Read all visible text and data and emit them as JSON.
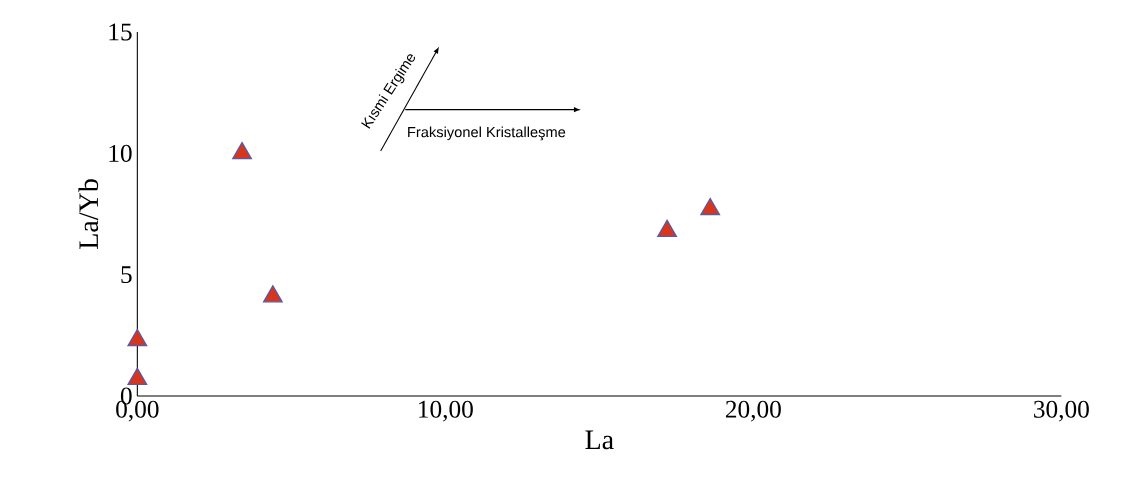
{
  "chart_data": {
    "type": "scatter",
    "xlabel": "La",
    "ylabel": "La/Yb",
    "x": [
      0,
      0,
      3.4,
      4.4,
      17.2,
      18.6
    ],
    "values": [
      0.7,
      2.3,
      10.0,
      4.1,
      6.8,
      7.7
    ],
    "color": "#d7351c",
    "marker": "triangle",
    "xlim": [
      0,
      30
    ],
    "ylim": [
      0,
      15
    ],
    "xticks": [
      {
        "value": 0,
        "label": "0,00"
      },
      {
        "value": 10,
        "label": "10,00"
      },
      {
        "value": 20,
        "label": "20,00"
      },
      {
        "value": 30,
        "label": "30,00"
      }
    ],
    "yticks": [
      0,
      5,
      10,
      15
    ],
    "annotations": [
      "Kısmi Ergime",
      "Fraksiyonel Kristalleşme"
    ]
  }
}
